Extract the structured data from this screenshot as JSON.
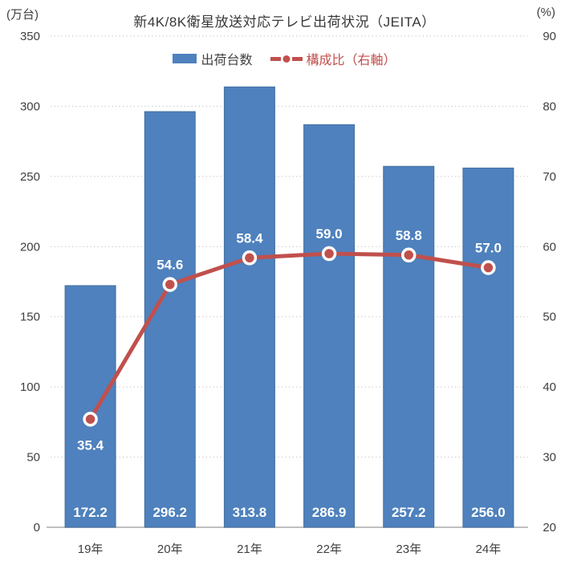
{
  "title": "新4K/8K衛星放送対応テレビ出荷状況（JEITA）",
  "legend": {
    "bars_label": "出荷台数",
    "line_label": "構成比（右軸）"
  },
  "left_axis": {
    "unit": "(万台)",
    "min": 0,
    "max": 350,
    "step": 50,
    "ticks": [
      "350",
      "300",
      "250",
      "200",
      "150",
      "100",
      "50",
      "0"
    ]
  },
  "right_axis": {
    "unit": "(%)",
    "min": 20,
    "max": 90,
    "step": 10,
    "ticks": [
      "90",
      "80",
      "70",
      "60",
      "50",
      "40",
      "30",
      "20"
    ]
  },
  "colors": {
    "bar": "#4e81bd",
    "bar_edge": "#44709f",
    "line": "#c0504d",
    "marker_ring": "#ffffff",
    "axis_text": "#404040",
    "title_text": "#383838",
    "grid": "#c9c9c9",
    "axis_line": "#bfbfbf",
    "value_label": "#ffffff"
  },
  "chart_data": {
    "type": "bar+line combo",
    "title": "新4K/8K衛星放送対応テレビ出荷状況（JEITA）",
    "categories": [
      "19年",
      "20年",
      "21年",
      "22年",
      "23年",
      "24年"
    ],
    "series": [
      {
        "name": "出荷台数",
        "type": "bar",
        "axis": "left",
        "values": [
          172.2,
          296.2,
          313.8,
          286.9,
          257.2,
          256.0
        ],
        "labels": [
          "172.2",
          "296.2",
          "313.8",
          "286.9",
          "257.2",
          "256.0"
        ],
        "color": "#4e81bd"
      },
      {
        "name": "構成比（右軸）",
        "type": "line",
        "axis": "right",
        "values": [
          35.4,
          54.6,
          58.4,
          59.0,
          58.8,
          57.0
        ],
        "labels": [
          "35.4",
          "54.6",
          "58.4",
          "59.0",
          "58.8",
          "57.0"
        ],
        "color": "#c0504d"
      }
    ],
    "left_ylim": [
      0,
      350
    ],
    "right_ylim": [
      20,
      90
    ],
    "left_unit": "(万台)",
    "right_unit": "(%)",
    "grid": true,
    "grid_style": "dotted horizontal",
    "legend_position": "top"
  }
}
